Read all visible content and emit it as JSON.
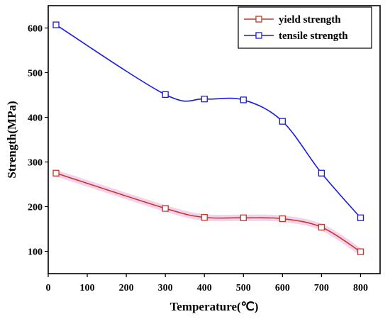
{
  "chart_data": {
    "type": "line",
    "xlabel": "Temperature(℃)",
    "ylabel": "Strength(MPa)",
    "xlim": [
      0,
      850
    ],
    "ylim": [
      50,
      650
    ],
    "xticks": [
      "0",
      "100",
      "200",
      "300",
      "400",
      "500",
      "600",
      "700",
      "800"
    ],
    "yticks": [
      "100",
      "200",
      "300",
      "400",
      "500",
      "600"
    ],
    "grid": false,
    "legend_position": "top-right",
    "series": [
      {
        "name": "yield strength",
        "color": "#c0392b",
        "marker": "open-square",
        "x": [
          20,
          300,
          400,
          500,
          600,
          700,
          800
        ],
        "y": [
          275,
          196,
          176,
          175,
          173,
          154,
          99
        ]
      },
      {
        "name": "tensile strength",
        "color": "#1a1adf",
        "marker": "open-square",
        "x": [
          20,
          300,
          400,
          500,
          600,
          700,
          800
        ],
        "y": [
          607,
          451,
          441,
          439,
          391,
          275,
          175
        ]
      }
    ]
  }
}
